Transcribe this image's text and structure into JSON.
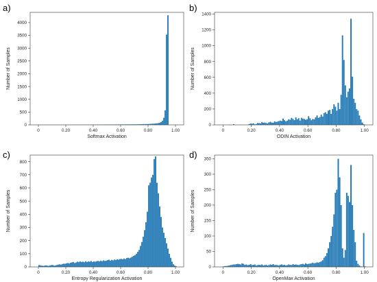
{
  "style": {
    "bar_color": "#1f77b4"
  },
  "chart_data": [
    {
      "type": "bar",
      "panel_label": "a)",
      "xlabel": "Softmax Activation",
      "ylabel": "Number of Samples",
      "xlim": [
        -0.06,
        1.06
      ],
      "ylim": [
        0,
        4400
      ],
      "xticks": [
        0,
        0.2,
        0.4,
        0.6,
        0.8,
        1.0
      ],
      "xtick_labels": [
        "0",
        "0.20",
        "0.40",
        "0.60",
        "0.80",
        "1.00"
      ],
      "yticks": [
        0,
        500,
        1000,
        1500,
        2000,
        2500,
        3000,
        3500,
        4000
      ],
      "ytick_labels": [
        "0",
        "500",
        "1000",
        "1500",
        "2000",
        "2500",
        "3000",
        "3500",
        "4000"
      ],
      "bin_start": 0.0,
      "bin_width": 0.01,
      "values": [
        6,
        4,
        4,
        3,
        4,
        5,
        6,
        5,
        5,
        6,
        7,
        6,
        6,
        6,
        5,
        6,
        7,
        7,
        6,
        7,
        8,
        8,
        8,
        7,
        8,
        8,
        9,
        9,
        8,
        9,
        10,
        10,
        9,
        10,
        10,
        11,
        11,
        11,
        12,
        11,
        12,
        12,
        13,
        13,
        13,
        13,
        14,
        14,
        14,
        15,
        15,
        15,
        15,
        16,
        16,
        16,
        17,
        17,
        18,
        18,
        18,
        19,
        19,
        20,
        20,
        21,
        21,
        22,
        22,
        23,
        24,
        24,
        25,
        26,
        27,
        28,
        30,
        31,
        33,
        35,
        37,
        40,
        43,
        47,
        51,
        56,
        63,
        72,
        86,
        110,
        160,
        280,
        570,
        3530,
        4290
      ]
    },
    {
      "type": "bar",
      "panel_label": "b)",
      "xlabel": "ODIN Activation",
      "ylabel": "Number of Samples",
      "xlim": [
        -0.06,
        1.06
      ],
      "ylim": [
        0,
        1420
      ],
      "xticks": [
        0,
        0.2,
        0.4,
        0.6,
        0.8,
        1.0
      ],
      "xtick_labels": [
        "0",
        "0.20",
        "0.40",
        "0.60",
        "0.80",
        "1.00"
      ],
      "yticks": [
        0,
        200,
        400,
        600,
        800,
        1000,
        1200,
        1400
      ],
      "ytick_labels": [
        "0",
        "200",
        "400",
        "600",
        "800",
        "1000",
        "1200",
        "1400"
      ],
      "bin_start": 0.0,
      "bin_width": 0.01,
      "values": [
        0,
        2,
        0,
        0,
        4,
        0,
        0,
        10,
        0,
        0,
        0,
        0,
        3,
        0,
        0,
        0,
        0,
        3,
        10,
        18,
        15,
        20,
        8,
        12,
        25,
        22,
        18,
        35,
        28,
        30,
        25,
        20,
        32,
        40,
        30,
        28,
        45,
        38,
        42,
        48,
        55,
        50,
        80,
        60,
        45,
        55,
        70,
        65,
        90,
        75,
        60,
        95,
        70,
        85,
        55,
        90,
        80,
        75,
        65,
        70,
        110,
        85,
        60,
        75,
        70,
        95,
        120,
        90,
        100,
        130,
        105,
        150,
        160,
        140,
        180,
        190,
        140,
        200,
        260,
        230,
        180,
        280,
        200,
        380,
        1130,
        820,
        500,
        350,
        420,
        460,
        1340,
        610,
        330,
        280,
        200,
        180,
        120,
        70,
        30,
        10,
        3
      ]
    },
    {
      "type": "bar",
      "panel_label": "c)",
      "xlabel": "Entropy Regularization Activation",
      "ylabel": "Number of Samples",
      "xlim": [
        -0.06,
        1.06
      ],
      "ylim": [
        0,
        850
      ],
      "xticks": [
        0,
        0.2,
        0.4,
        0.6,
        0.8,
        1.0
      ],
      "xtick_labels": [
        "0",
        "0.20",
        "0.40",
        "0.60",
        "0.80",
        "1.00"
      ],
      "yticks": [
        0,
        100,
        200,
        300,
        400,
        500,
        600,
        700,
        800
      ],
      "ytick_labels": [
        "0",
        "100",
        "200",
        "300",
        "400",
        "500",
        "600",
        "700",
        "800"
      ],
      "bin_start": 0.0,
      "bin_width": 0.01,
      "values": [
        15,
        12,
        10,
        8,
        10,
        12,
        10,
        8,
        12,
        14,
        15,
        10,
        12,
        15,
        18,
        20,
        18,
        22,
        25,
        24,
        28,
        30,
        26,
        32,
        35,
        38,
        30,
        34,
        40,
        36,
        42,
        38,
        40,
        36,
        44,
        38,
        42,
        40,
        45,
        38,
        42,
        40,
        44,
        46,
        42,
        48,
        44,
        50,
        46,
        48,
        52,
        55,
        48,
        54,
        50,
        56,
        52,
        58,
        55,
        60,
        62,
        58,
        64,
        60,
        68,
        70,
        66,
        72,
        78,
        85,
        90,
        100,
        115,
        130,
        160,
        190,
        230,
        280,
        340,
        420,
        620,
        640,
        680,
        700,
        820,
        840,
        640,
        560,
        460,
        380,
        300,
        260,
        220,
        180,
        140,
        100,
        70,
        40,
        20,
        10,
        5
      ]
    },
    {
      "type": "bar",
      "panel_label": "d)",
      "xlabel": "OpenMax Activation",
      "ylabel": "Number of Samples",
      "xlim": [
        -0.06,
        1.06
      ],
      "ylim": [
        0,
        362
      ],
      "xticks": [
        0,
        0.2,
        0.4,
        0.6,
        0.8,
        1.0
      ],
      "xtick_labels": [
        "0",
        "0.20",
        "0.40",
        "0.60",
        "0.80",
        "1.00"
      ],
      "yticks": [
        0,
        50,
        100,
        150,
        200,
        250,
        300,
        350
      ],
      "ytick_labels": [
        "0",
        "50",
        "100",
        "150",
        "200",
        "250",
        "300",
        "350"
      ],
      "bin_start": 0.0,
      "bin_width": 0.01,
      "values": [
        2,
        3,
        3,
        4,
        5,
        6,
        7,
        8,
        8,
        9,
        10,
        9,
        8,
        12,
        10,
        7,
        8,
        6,
        7,
        9,
        6,
        7,
        8,
        5,
        6,
        7,
        6,
        8,
        5,
        6,
        7,
        5,
        6,
        8,
        7,
        9,
        6,
        7,
        6,
        5,
        7,
        8,
        6,
        7,
        5,
        6,
        8,
        7,
        6,
        9,
        7,
        8,
        7,
        6,
        8,
        9,
        10,
        8,
        12,
        9,
        10,
        11,
        12,
        14,
        12,
        13,
        15,
        14,
        16,
        18,
        22,
        30,
        35,
        45,
        60,
        80,
        100,
        130,
        170,
        240,
        250,
        350,
        290,
        200,
        60,
        30,
        55,
        240,
        230,
        210,
        330,
        200,
        120,
        80,
        20,
        10,
        5,
        2,
        1,
        110,
        2
      ]
    }
  ]
}
